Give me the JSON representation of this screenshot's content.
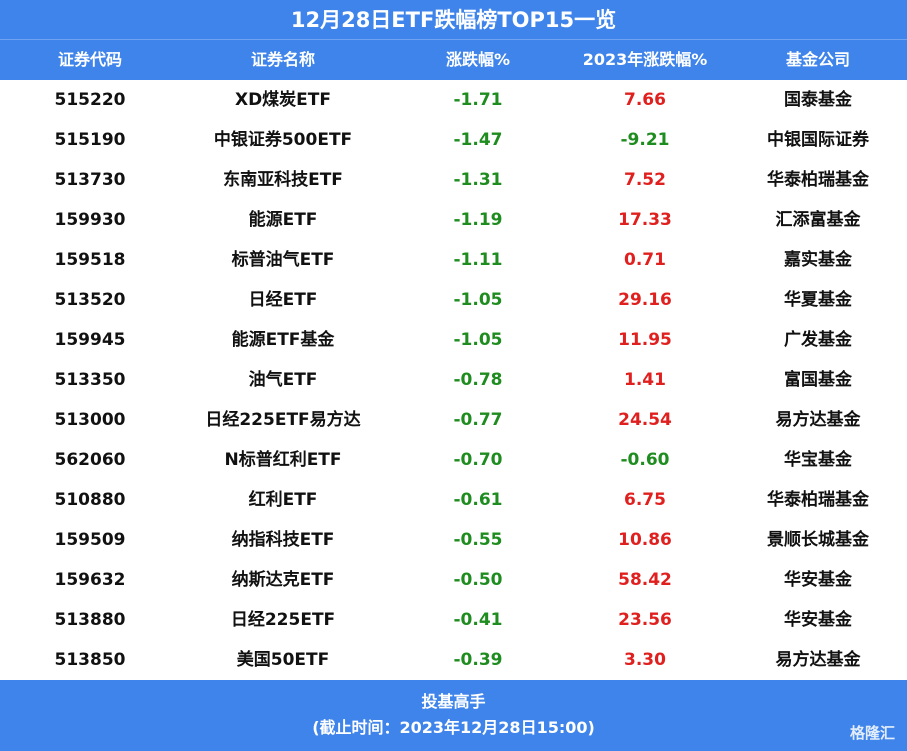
{
  "header": {
    "title": "12月28日ETF跌幅榜TOP15一览"
  },
  "table": {
    "columns": [
      "证券代码",
      "证券名称",
      "涨跌幅%",
      "2023年涨跌幅%",
      "基金公司"
    ],
    "rows": [
      [
        "515220",
        "XD煤炭ETF",
        "-1.71",
        "7.66",
        "国泰基金"
      ],
      [
        "515190",
        "中银证券500ETF",
        "-1.47",
        "-9.21",
        "中银国际证券"
      ],
      [
        "513730",
        "东南亚科技ETF",
        "-1.31",
        "7.52",
        "华泰柏瑞基金"
      ],
      [
        "159930",
        "能源ETF",
        "-1.19",
        "17.33",
        "汇添富基金"
      ],
      [
        "159518",
        "标普油气ETF",
        "-1.11",
        "0.71",
        "嘉实基金"
      ],
      [
        "513520",
        "日经ETF",
        "-1.05",
        "29.16",
        "华夏基金"
      ],
      [
        "159945",
        "能源ETF基金",
        "-1.05",
        "11.95",
        "广发基金"
      ],
      [
        "513350",
        "油气ETF",
        "-0.78",
        "1.41",
        "富国基金"
      ],
      [
        "513000",
        "日经225ETF易方达",
        "-0.77",
        "24.54",
        "易方达基金"
      ],
      [
        "562060",
        "N标普红利ETF",
        "-0.70",
        "-0.60",
        "华宝基金"
      ],
      [
        "510880",
        "红利ETF",
        "-0.61",
        "6.75",
        "华泰柏瑞基金"
      ],
      [
        "159509",
        "纳指科技ETF",
        "-0.55",
        "10.86",
        "景顺长城基金"
      ],
      [
        "159632",
        "纳斯达克ETF",
        "-0.50",
        "58.42",
        "华安基金"
      ],
      [
        "513880",
        "日经225ETF",
        "-0.41",
        "23.56",
        "华安基金"
      ],
      [
        "513850",
        "美国50ETF",
        "-0.39",
        "3.30",
        "易方达基金"
      ]
    ]
  },
  "footer": {
    "source": "投基高手",
    "note": "(截止时间：2023年12月28日15:00)",
    "watermark": "格隆汇"
  }
}
